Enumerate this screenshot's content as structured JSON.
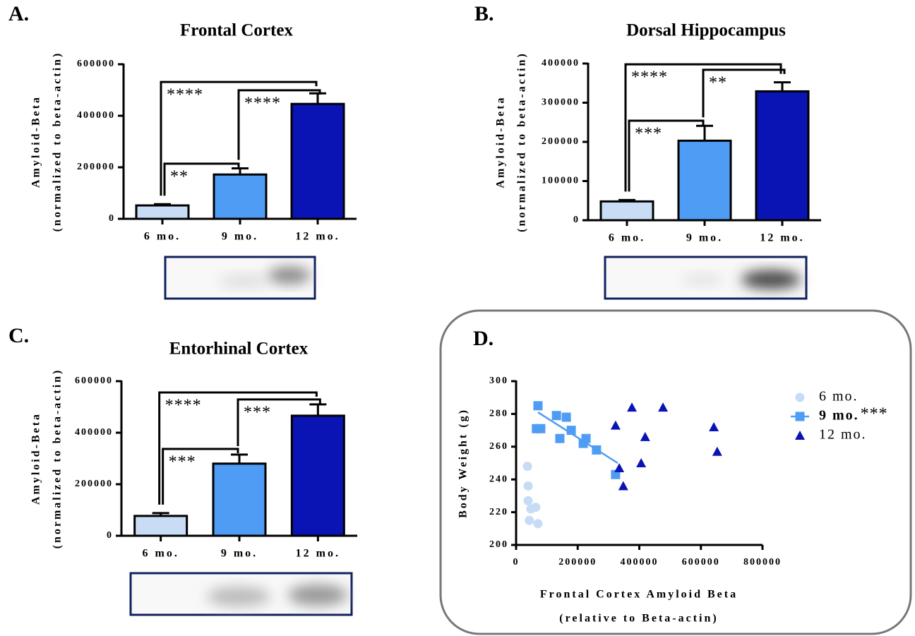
{
  "chart_data": [
    {
      "type": "bar",
      "panel": "A.",
      "title": "Frontal Cortex",
      "ylabel": [
        "Amyloid-Beta",
        "(normalized to beta-actin)"
      ],
      "categories": [
        "6 mo.",
        "9 mo.",
        "12 mo."
      ],
      "values": [
        52000,
        172000,
        446000
      ],
      "errors": [
        5000,
        24000,
        41000
      ],
      "colors": [
        "#c9dcf5",
        "#4f9cf5",
        "#0a14b4"
      ],
      "ylim": [
        0,
        600000
      ],
      "yticks": [
        0,
        200000,
        400000,
        600000
      ],
      "brackets": [
        {
          "from": 0,
          "to": 2,
          "y": 531000,
          "label": "****"
        },
        {
          "from": 0,
          "to": 1,
          "y": 214000,
          "label": "**"
        },
        {
          "from": 1,
          "to": 2,
          "y": 499000,
          "label": "****"
        }
      ]
    },
    {
      "type": "bar",
      "panel": "B.",
      "title": "Dorsal Hippocampus",
      "ylabel": [
        "Amyloid-Beta",
        "(normalized to beta-actin)"
      ],
      "categories": [
        "6 mo.",
        "9 mo.",
        "12 mo."
      ],
      "values": [
        48000,
        203000,
        329000
      ],
      "errors": [
        3500,
        38000,
        23000
      ],
      "colors": [
        "#c9dcf5",
        "#4f9cf5",
        "#0a14b4"
      ],
      "ylim": [
        0,
        400000
      ],
      "yticks": [
        0,
        100000,
        200000,
        300000,
        400000
      ],
      "brackets": [
        {
          "from": 0,
          "to": 2,
          "y": 398000,
          "label": "****"
        },
        {
          "from": 1,
          "to": 2,
          "y": 384000,
          "label": "**"
        },
        {
          "from": 0,
          "to": 1,
          "y": 254000,
          "label": "***"
        }
      ]
    },
    {
      "type": "bar",
      "panel": "C.",
      "title": "Entorhinal Cortex",
      "ylabel": [
        "Amyloid-Beta",
        "(normalized to beta-actin)"
      ],
      "categories": [
        "6 mo.",
        "9 mo.",
        "12 mo."
      ],
      "values": [
        77000,
        280000,
        466000
      ],
      "errors": [
        11000,
        35000,
        44000
      ],
      "colors": [
        "#c9dcf5",
        "#4f9cf5",
        "#0a14b4"
      ],
      "ylim": [
        0,
        600000
      ],
      "yticks": [
        0,
        200000,
        400000,
        600000
      ],
      "brackets": [
        {
          "from": 0,
          "to": 2,
          "y": 556000,
          "label": "****"
        },
        {
          "from": 1,
          "to": 2,
          "y": 529000,
          "label": "***"
        },
        {
          "from": 0,
          "to": 1,
          "y": 337000,
          "label": "***"
        }
      ]
    },
    {
      "type": "scatter",
      "panel": "D.",
      "xlabel": [
        "Frontal Cortex Amyloid Beta",
        "(relative to Beta-actin)"
      ],
      "ylabel": "Body Weight (g)",
      "xlim": [
        0,
        800000
      ],
      "xticks": [
        0,
        200000,
        400000,
        600000,
        800000
      ],
      "ylim": [
        200,
        300
      ],
      "yticks": [
        200,
        220,
        240,
        260,
        280,
        300
      ],
      "legend": "upper right",
      "series": [
        {
          "name": "6 mo.",
          "color": "#c6dcf5",
          "marker": "circle",
          "x": [
            37000,
            39000,
            39000,
            48000,
            64000,
            43000,
            71000
          ],
          "y": [
            248,
            236,
            227,
            222,
            223,
            215,
            213
          ]
        },
        {
          "name": "9 mo.",
          "color": "#4f9cf5",
          "marker": "square",
          "significance": "***",
          "x": [
            71000,
            80000,
            66000,
            131000,
            163000,
            142000,
            179000,
            218000,
            227000,
            261000,
            323000
          ],
          "y": [
            285,
            271,
            271,
            279,
            278,
            265,
            270,
            262,
            265,
            258,
            243
          ],
          "fit": {
            "x": [
              71000,
              330000
            ],
            "y": [
              281,
              250
            ]
          }
        },
        {
          "name": "12 mo.",
          "color": "#0a14b4",
          "marker": "triangle",
          "x": [
            323000,
            376000,
            477000,
            642000,
            419000,
            406000,
            335000,
            348000,
            653000
          ],
          "y": [
            273,
            284,
            284,
            272,
            266,
            250,
            247,
            236,
            257
          ]
        }
      ]
    }
  ]
}
